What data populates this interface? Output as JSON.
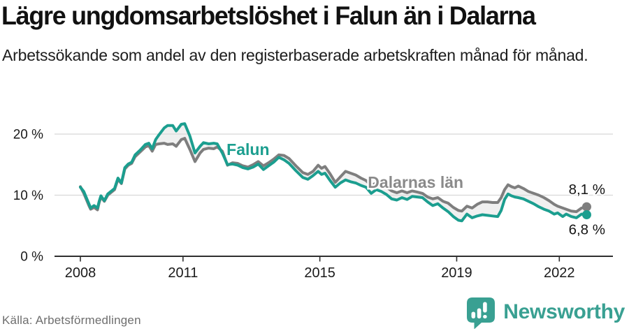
{
  "header": {
    "title": "Lägre ungdomsarbetslöshet i Falun än i Dalarna",
    "subtitle": "Arbetssökande som andel av den registerbaserade arbetskraften månad för månad."
  },
  "footer": {
    "source": "Källa: Arbetsförmedlingen",
    "brand": "Newsworthy"
  },
  "colors": {
    "falun": "#1b9e8f",
    "dalarna": "#7e7e7e",
    "dalarna_label": "#8a8a8a",
    "shade": "#f0f0f0",
    "grid": "#d8d8d8",
    "axis": "#2f2f2f",
    "text": "#1a1a1a",
    "logo": "#39a092"
  },
  "chart_data": {
    "type": "line",
    "unit": "%",
    "grid": "horizontal",
    "legend_position": "inline-labels",
    "x_domain": [
      2007.25,
      2023.6
    ],
    "y_domain": [
      0,
      23
    ],
    "y_ticks": [
      {
        "value": 0,
        "label": "0 %"
      },
      {
        "value": 10,
        "label": "10 %"
      },
      {
        "value": 20,
        "label": "20 %"
      }
    ],
    "x_ticks": [
      {
        "value": 2008,
        "label": "2008"
      },
      {
        "value": 2011,
        "label": "2011"
      },
      {
        "value": 2015,
        "label": "2015"
      },
      {
        "value": 2019,
        "label": "2019"
      },
      {
        "value": 2022,
        "label": "2022"
      }
    ],
    "x": [
      2008.0,
      2008.1,
      2008.25,
      2008.3,
      2008.4,
      2008.5,
      2008.55,
      2008.6,
      2008.7,
      2008.8,
      2009.0,
      2009.1,
      2009.2,
      2009.3,
      2009.4,
      2009.5,
      2009.6,
      2009.75,
      2009.9,
      2010.0,
      2010.1,
      2010.2,
      2010.3,
      2010.45,
      2010.55,
      2010.7,
      2010.8,
      2010.95,
      2011.05,
      2011.2,
      2011.35,
      2011.5,
      2011.6,
      2011.75,
      2011.9,
      2012.0,
      2012.15,
      2012.3,
      2012.45,
      2012.6,
      2012.75,
      2012.9,
      2013.05,
      2013.2,
      2013.35,
      2013.5,
      2013.65,
      2013.8,
      2013.95,
      2014.1,
      2014.3,
      2014.5,
      2014.65,
      2014.8,
      2014.95,
      2015.05,
      2015.15,
      2015.3,
      2015.45,
      2015.6,
      2015.75,
      2015.9,
      2016.05,
      2016.2,
      2016.35,
      2016.5,
      2016.65,
      2016.8,
      2016.95,
      2017.1,
      2017.25,
      2017.4,
      2017.55,
      2017.7,
      2017.85,
      2018.0,
      2018.15,
      2018.3,
      2018.45,
      2018.6,
      2018.75,
      2018.9,
      2019.05,
      2019.15,
      2019.3,
      2019.45,
      2019.6,
      2019.75,
      2019.9,
      2020.05,
      2020.2,
      2020.3,
      2020.4,
      2020.5,
      2020.6,
      2020.7,
      2020.8,
      2020.95,
      2021.1,
      2021.25,
      2021.4,
      2021.55,
      2021.7,
      2021.85,
      2021.95,
      2022.1,
      2022.2,
      2022.35,
      2022.5,
      2022.65,
      2022.8
    ],
    "series": [
      {
        "name": "Dalarnas län",
        "color": "#7e7e7e",
        "label_color": "#8a8a8a",
        "end_label": "8,1 %",
        "label_at": {
          "x": 2017.8,
          "y": 11.2
        },
        "values": [
          11.4,
          10.3,
          8.3,
          7.7,
          8.0,
          7.6,
          8.8,
          9.7,
          9.0,
          10.0,
          10.9,
          12.6,
          11.9,
          14.3,
          14.9,
          15.2,
          16.3,
          17.1,
          17.9,
          18.1,
          17.2,
          18.3,
          18.4,
          18.5,
          18.3,
          18.4,
          18.0,
          19.1,
          19.3,
          17.5,
          15.5,
          16.9,
          17.5,
          17.7,
          17.6,
          17.9,
          17.2,
          14.9,
          15.3,
          15.2,
          14.8,
          14.6,
          15.0,
          15.5,
          14.8,
          15.3,
          15.9,
          16.6,
          16.5,
          16.0,
          14.8,
          13.7,
          13.4,
          13.9,
          14.9,
          14.4,
          14.7,
          13.5,
          12.1,
          13.0,
          13.9,
          13.6,
          13.3,
          12.8,
          12.4,
          11.6,
          12.0,
          11.8,
          11.3,
          10.7,
          10.4,
          10.7,
          10.4,
          10.7,
          10.5,
          10.3,
          9.7,
          9.4,
          9.6,
          9.0,
          8.7,
          8.0,
          7.5,
          7.4,
          8.2,
          7.9,
          8.5,
          8.9,
          8.9,
          8.8,
          8.8,
          9.6,
          10.9,
          11.7,
          11.4,
          11.2,
          11.5,
          11.1,
          10.6,
          10.3,
          10.0,
          9.6,
          9.1,
          8.5,
          8.2,
          7.9,
          7.7,
          7.4,
          7.3,
          7.9,
          8.1
        ]
      },
      {
        "name": "Falun",
        "color": "#1b9e8f",
        "end_label": "6,8 %",
        "label_at": {
          "x": 2012.9,
          "y": 16.6
        },
        "values": [
          11.3,
          10.6,
          8.6,
          7.9,
          8.3,
          7.9,
          9.0,
          9.9,
          9.1,
          10.2,
          11.1,
          12.8,
          12.0,
          14.5,
          15.1,
          15.4,
          16.6,
          17.4,
          18.3,
          18.5,
          17.6,
          19.1,
          19.9,
          21.0,
          21.4,
          21.4,
          20.5,
          21.6,
          21.7,
          19.7,
          16.9,
          18.0,
          18.6,
          18.4,
          18.5,
          18.4,
          16.9,
          15.0,
          15.1,
          14.9,
          14.5,
          14.3,
          14.6,
          15.1,
          14.2,
          14.8,
          15.4,
          16.2,
          15.8,
          15.2,
          14.0,
          12.9,
          12.6,
          13.2,
          13.9,
          13.4,
          13.6,
          12.4,
          11.3,
          12.0,
          12.5,
          12.2,
          12.0,
          11.6,
          11.3,
          10.3,
          10.9,
          10.6,
          10.1,
          9.4,
          9.2,
          9.6,
          9.3,
          9.8,
          9.7,
          9.6,
          8.9,
          8.3,
          8.6,
          7.9,
          7.3,
          6.5,
          5.9,
          5.8,
          6.9,
          6.3,
          6.6,
          6.8,
          6.7,
          6.6,
          6.5,
          7.5,
          9.3,
          10.2,
          9.9,
          9.7,
          9.6,
          9.4,
          9.0,
          8.6,
          8.1,
          7.7,
          7.4,
          6.9,
          7.1,
          6.5,
          6.9,
          6.5,
          6.3,
          6.9,
          6.8
        ]
      }
    ]
  }
}
